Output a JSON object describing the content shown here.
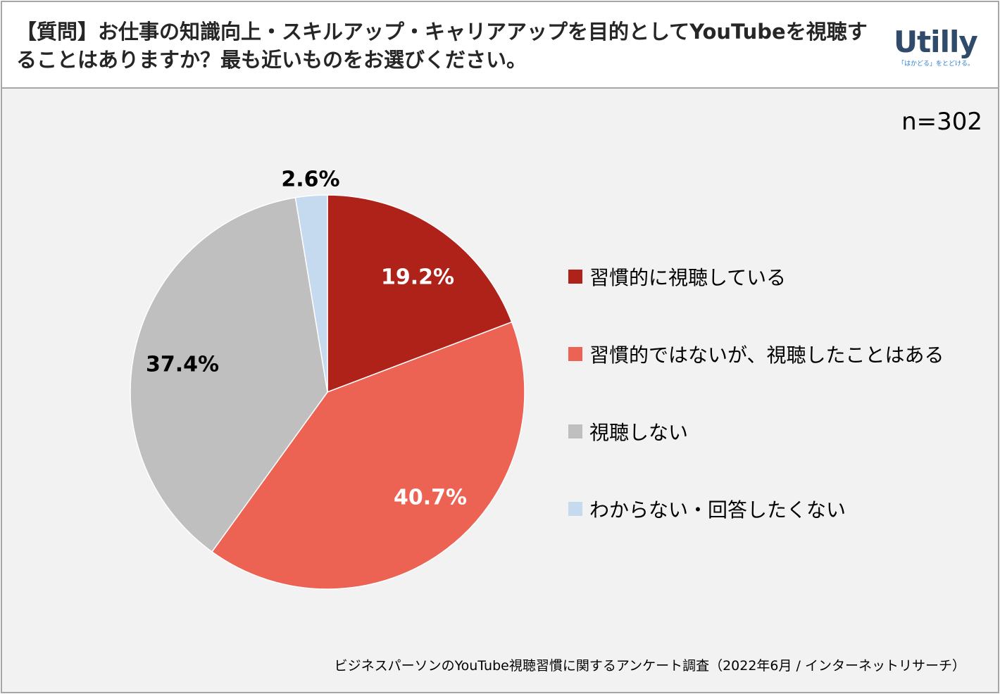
{
  "header": {
    "question": "【質問】お仕事の知識向上・スキルアップ・キャリアアップを目的としてYouTubeを視聴することはありますか？最も近いものをお選びください。",
    "logo_text": "Utilly",
    "logo_tagline": "「はかどる」をとどける。"
  },
  "sample_size": "n=302",
  "source": "ビジネスパーソンのYouTube視聴習慣に関するアンケート調査（2022年6月 / インターネットリサーチ）",
  "chart_data": {
    "type": "pie",
    "categories": [
      "習慣的に視聴している",
      "習慣的ではないが、視聴したことはある",
      "視聴しない",
      "わからない・回答したくない"
    ],
    "values": [
      19.2,
      40.7,
      37.4,
      2.6
    ],
    "data_labels": [
      "19.2%",
      "40.7%",
      "37.4%",
      "2.6%"
    ],
    "colors": [
      "#ae2219",
      "#ec6353",
      "#bfbfbf",
      "#c5d9ef"
    ],
    "label_colors": [
      "#ffffff",
      "#ffffff",
      "#000000",
      "#000000"
    ],
    "start_angle": "12 o'clock",
    "direction": "clockwise",
    "legend_position": "right"
  }
}
